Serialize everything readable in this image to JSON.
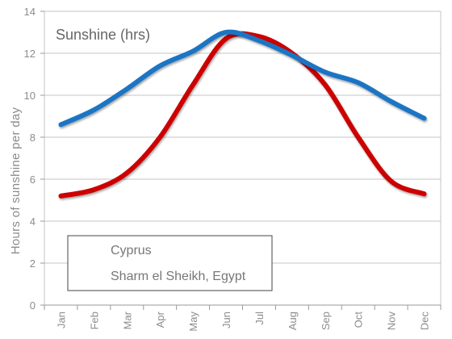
{
  "chart_data": {
    "type": "line",
    "title": "Sunshine (hrs)",
    "xlabel": "",
    "ylabel": "Hours of sunshine per day",
    "categories": [
      "Jan",
      "Feb",
      "Mar",
      "Apr",
      "May",
      "Jun",
      "Jul",
      "Aug",
      "Sep",
      "Oct",
      "Nov",
      "Dec"
    ],
    "ylim": [
      0,
      14
    ],
    "yticks": [
      0,
      2,
      4,
      6,
      8,
      10,
      12,
      14
    ],
    "grid": true,
    "legend_position": "bottom-left",
    "series": [
      {
        "name": "Cyprus",
        "color": "#cc0000",
        "values": [
          5.2,
          5.5,
          6.3,
          8.0,
          10.5,
          12.7,
          12.8,
          12.0,
          10.5,
          8.0,
          5.9,
          5.3
        ]
      },
      {
        "name": "Sharm el Sheikh, Egypt",
        "color": "#1a75c4",
        "values": [
          8.6,
          9.3,
          10.3,
          11.4,
          12.1,
          13.0,
          12.6,
          11.9,
          11.1,
          10.6,
          9.7,
          8.9
        ]
      }
    ]
  }
}
